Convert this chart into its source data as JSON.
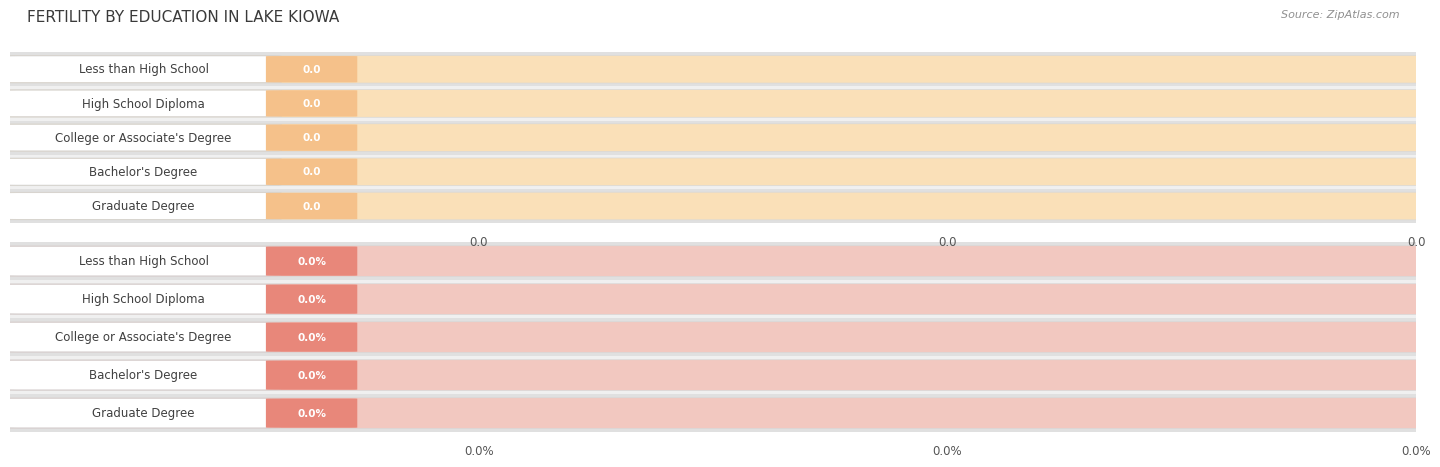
{
  "title": "FERTILITY BY EDUCATION IN LAKE KIOWA",
  "source": "Source: ZipAtlas.com",
  "categories": [
    "Less than High School",
    "High School Diploma",
    "College or Associate's Degree",
    "Bachelor's Degree",
    "Graduate Degree"
  ],
  "values_top": [
    0.0,
    0.0,
    0.0,
    0.0,
    0.0
  ],
  "values_bottom": [
    0.0,
    0.0,
    0.0,
    0.0,
    0.0
  ],
  "bar_color_top": "#F5C18A",
  "bar_bg_color_top": "#FAE0B8",
  "bar_color_bottom": "#E8877A",
  "bar_bg_color_bottom": "#F2C8C0",
  "row_bg_light": "#f0f0f0",
  "row_bg_dark": "#e0e0e0",
  "title_color": "#3a3a3a",
  "source_color": "#909090",
  "tick_color": "#555555",
  "title_fontsize": 11,
  "label_fontsize": 8.5,
  "value_fontsize": 7.5,
  "tick_fontsize": 8.5,
  "top_tick_labels": [
    "0.0",
    "0.0",
    "0.0"
  ],
  "bottom_tick_labels": [
    "0.0%",
    "0.0%",
    "0.0%"
  ],
  "fig_width": 14.06,
  "fig_height": 4.75
}
